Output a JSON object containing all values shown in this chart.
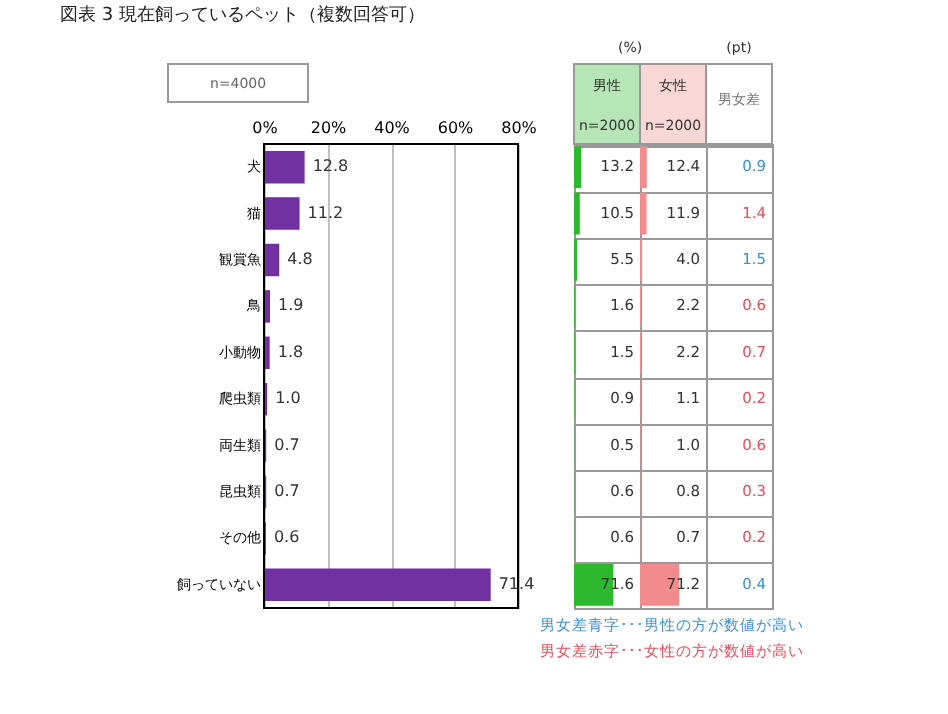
{
  "chart_data": [
    {
      "type": "bar",
      "orientation": "horizontal",
      "title": "図表 3  現在飼っているペット（複数回答可）",
      "annotations": [
        "n=4000"
      ],
      "categories": [
        "犬",
        "猫",
        "観賞魚",
        "鳥",
        "小動物",
        "爬虫類",
        "両生類",
        "昆虫類",
        "その他",
        "飼っていない"
      ],
      "values": [
        12.8,
        11.2,
        4.8,
        1.9,
        1.8,
        1.0,
        0.7,
        0.7,
        0.6,
        71.4
      ],
      "color": "#7030a0",
      "value_labels": [
        "12.8",
        "11.2",
        "4.8",
        "1.9",
        "1.8",
        "1.0",
        "0.7",
        "0.7",
        "0.6",
        "71.4"
      ],
      "xlim": [
        0,
        80
      ],
      "xticks": [
        {
          "value": 0,
          "label": "0%"
        },
        {
          "value": 20,
          "label": "20%"
        },
        {
          "value": 40,
          "label": "40%"
        },
        {
          "value": 60,
          "label": "60%"
        },
        {
          "value": 80,
          "label": "80%"
        }
      ],
      "grid": "x"
    },
    {
      "type": "bar",
      "orientation": "horizontal",
      "title": "男性",
      "subtitle": "n=2000",
      "annotations": [
        "(%)"
      ],
      "categories": [
        null,
        null,
        null,
        null,
        null,
        null,
        null,
        null,
        null,
        null
      ],
      "xlim": [
        0,
        120
      ],
      "color": "#2eb82e",
      "values": [
        13.2,
        10.5,
        5.5,
        1.6,
        1.5,
        0.9,
        0.5,
        0.6,
        0.6,
        71.6
      ],
      "value_labels": [
        "13.2",
        "10.5",
        "5.5",
        "1.6",
        "1.5",
        "0.9",
        "0.5",
        "0.6",
        "0.6",
        "71.6"
      ]
    },
    {
      "type": "bar",
      "orientation": "horizontal",
      "title": "女性",
      "subtitle": "n=2000",
      "categories": [
        null,
        null,
        null,
        null,
        null,
        null,
        null,
        null,
        null,
        null
      ],
      "xlim": [
        0,
        120
      ],
      "color": "#f28c8c",
      "values": [
        12.4,
        11.9,
        4.0,
        2.2,
        2.2,
        1.1,
        1.0,
        0.8,
        0.7,
        71.2
      ],
      "value_labels": [
        "12.4",
        "11.9",
        "4.0",
        "2.2",
        "2.2",
        "1.1",
        "1.0",
        "0.8",
        "0.7",
        "71.2"
      ]
    },
    {
      "type": "other",
      "title": "男女差",
      "annotations": [
        "(pt)",
        "男女差青字･･･男性の方が数値が高い",
        "男女差赤字･･･女性の方が数値が高い"
      ],
      "categories": [
        null,
        null,
        null,
        null,
        null,
        null,
        null,
        null,
        null,
        null
      ],
      "values": [
        0.9,
        1.4,
        1.5,
        0.6,
        0.7,
        0.2,
        0.6,
        0.3,
        0.2,
        0.4
      ],
      "data_labels": true,
      "colors": [
        "#3d8fd1",
        "#e0505a",
        "#3d8fd1",
        "#e0505a",
        "#e0505a",
        "#e0505a",
        "#e0505a",
        "#e0505a",
        "#e0505a",
        "#3d8fd1"
      ]
    }
  ]
}
